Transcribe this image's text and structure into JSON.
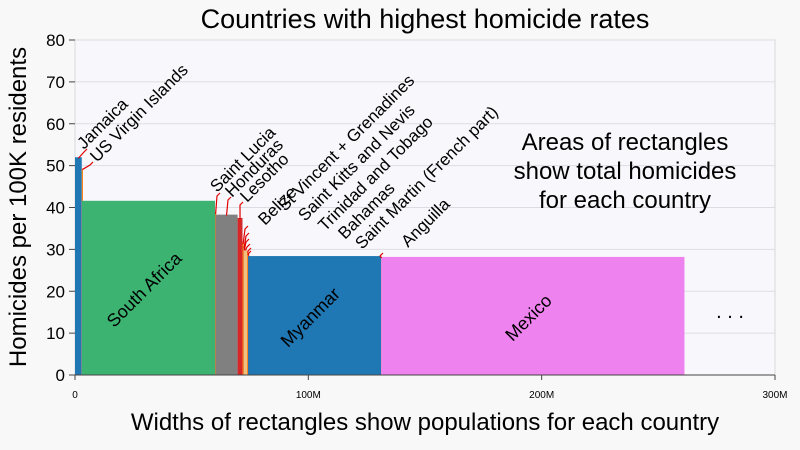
{
  "chart_data": {
    "type": "bar",
    "variant": "variable-width",
    "title": "Countries with highest homicide rates",
    "xlabel": "Widths of rectangles show populations for each country",
    "ylabel": "Homicides per 100K residents",
    "xlim": [
      0,
      300000000
    ],
    "ylim": [
      0,
      80
    ],
    "x_ticks": [
      {
        "value": 0,
        "label": "0"
      },
      {
        "value": 100000000,
        "label": "100M"
      },
      {
        "value": 200000000,
        "label": "200M"
      },
      {
        "value": 300000000,
        "label": "300M"
      }
    ],
    "y_ticks": [
      0,
      10,
      20,
      30,
      40,
      50,
      60,
      70,
      80
    ],
    "grid": "horizontal",
    "annotation": [
      "Areas of rectangles",
      "show total homicides",
      "for each country"
    ],
    "continuation": ". . .",
    "countries": [
      {
        "name": "Jamaica",
        "population": 2900000,
        "rate": 52,
        "color": "#1f77b4",
        "label_mode": "callout"
      },
      {
        "name": "US Virgin Islands",
        "population": 100000,
        "rate": 49.3,
        "color": "#ff7f0e",
        "label_mode": "callout"
      },
      {
        "name": "South Africa",
        "population": 57000000,
        "rate": 41.6,
        "color": "#3cb371",
        "label_mode": "inside"
      },
      {
        "name": "Saint Lucia",
        "population": 180000,
        "rate": 38.7,
        "color": "#ff7f0e",
        "label_mode": "callout"
      },
      {
        "name": "Honduras",
        "population": 9500000,
        "rate": 38.3,
        "color": "#808080",
        "label_mode": "callout"
      },
      {
        "name": "Lesotho",
        "population": 2100000,
        "rate": 37.5,
        "color": "#d62728",
        "label_mode": "callout"
      },
      {
        "name": "Belize",
        "population": 400000,
        "rate": 31.5,
        "color": "#ff7f0e",
        "label_mode": "callout"
      },
      {
        "name": "St Vincent + Grenadines",
        "population": 110000,
        "rate": 30.6,
        "color": "#9467bd",
        "label_mode": "callout"
      },
      {
        "name": "Saint Kitts and Nevis",
        "population": 52000,
        "rate": 30.0,
        "color": "#ff7f0e",
        "label_mode": "callout"
      },
      {
        "name": "Trinidad and Tobago",
        "population": 1400000,
        "rate": 30.0,
        "color": "#f0c080",
        "label_mode": "callout"
      },
      {
        "name": "Bahamas",
        "population": 400000,
        "rate": 29.5,
        "color": "#ff7f0e",
        "label_mode": "callout"
      },
      {
        "name": "Saint Martin (French part)",
        "population": 36000,
        "rate": 29.0,
        "color": "#d62728",
        "label_mode": "callout"
      },
      {
        "name": "Myanmar",
        "population": 57000000,
        "rate": 28.4,
        "color": "#1f77b4",
        "label_mode": "inside"
      },
      {
        "name": "Anguilla",
        "population": 15000,
        "rate": 28.2,
        "color": "#ff7f0e",
        "label_mode": "callout"
      },
      {
        "name": "Mexico",
        "population": 130000000,
        "rate": 28.2,
        "color": "#ee82ee",
        "label_mode": "inside"
      }
    ]
  }
}
